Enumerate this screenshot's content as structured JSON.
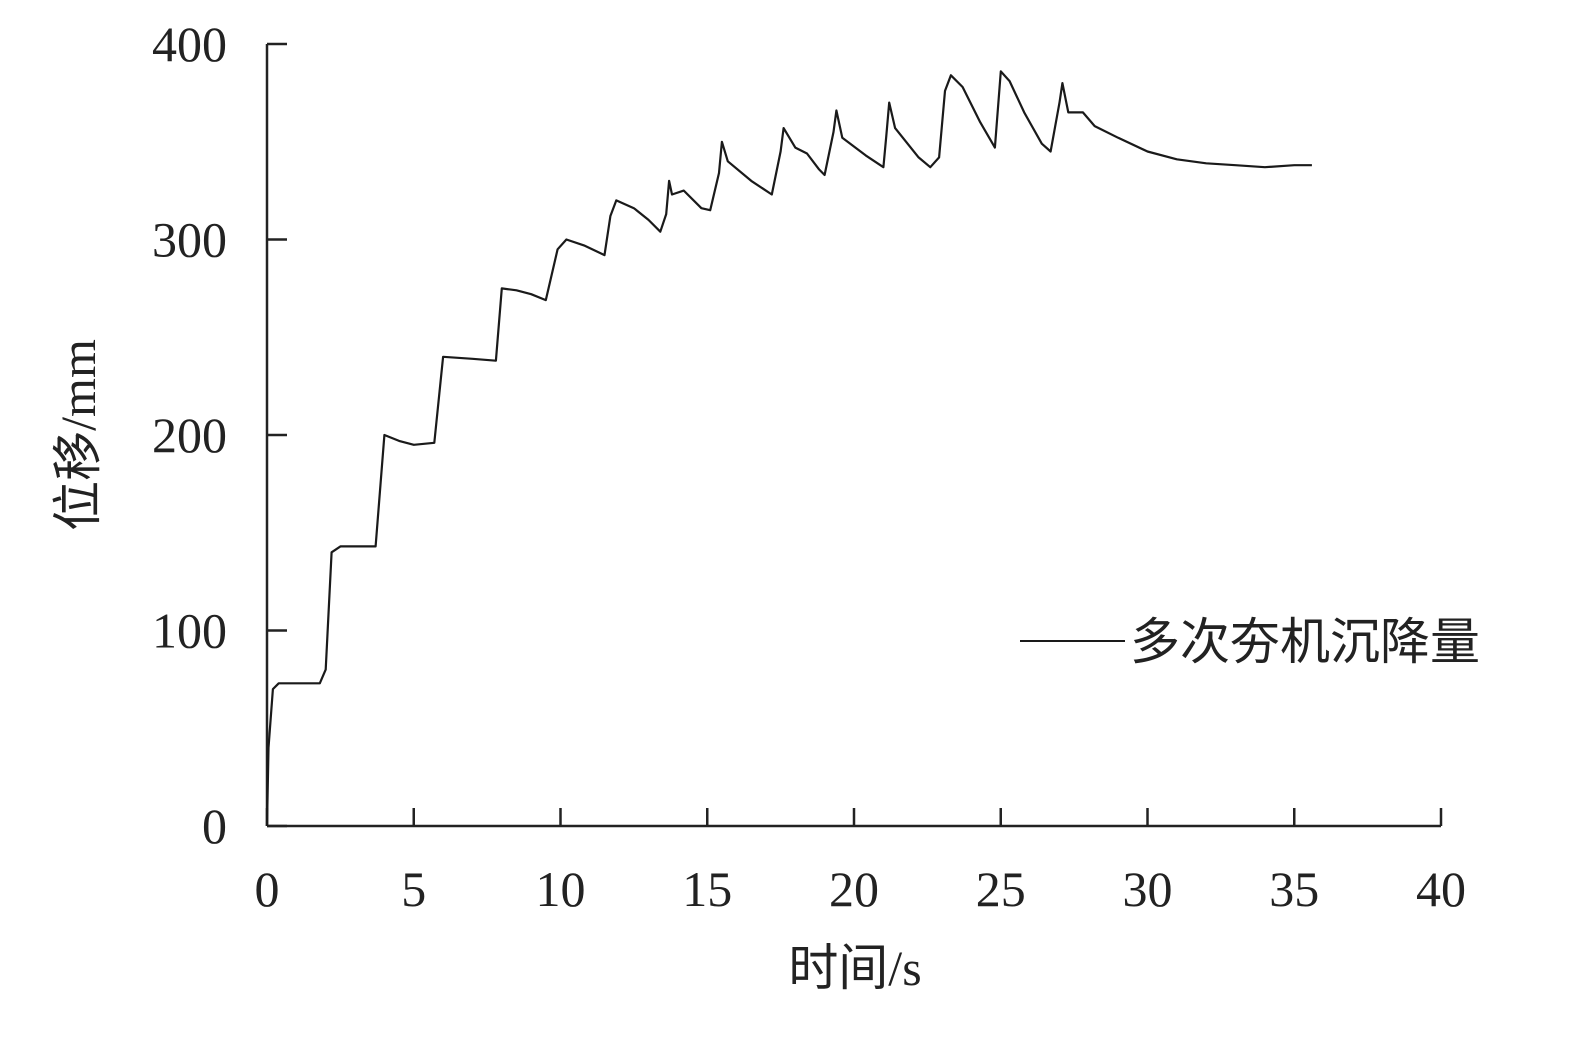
{
  "chart_data": {
    "type": "line",
    "xlabel": "时间/s",
    "ylabel": "位移/mm",
    "x": [
      0,
      0.05,
      0.2,
      0.4,
      1.8,
      2.0,
      2.2,
      2.5,
      3.7,
      4.0,
      4.5,
      5.0,
      5.7,
      6.0,
      7.0,
      7.8,
      8.0,
      8.5,
      9.0,
      9.5,
      9.9,
      10.2,
      10.8,
      11.5,
      11.7,
      11.9,
      12.5,
      13.0,
      13.4,
      13.6,
      13.7,
      13.8,
      14.2,
      14.8,
      15.1,
      15.4,
      15.5,
      15.7,
      16.5,
      17.2,
      17.5,
      17.6,
      18.0,
      18.4,
      18.8,
      19.0,
      19.3,
      19.4,
      19.6,
      20.4,
      21.0,
      21.1,
      21.2,
      21.4,
      22.2,
      22.6,
      22.9,
      23.1,
      23.3,
      23.7,
      24.3,
      24.8,
      25.0,
      25.3,
      25.8,
      26.4,
      26.7,
      27.0,
      27.1,
      27.3,
      27.8,
      28.2,
      29.0,
      30,
      31,
      32,
      33,
      34,
      35,
      35.6
    ],
    "series": [
      {
        "name": "多次夯机沉降量",
        "color": "#1a1a1a",
        "values": [
          0,
          40,
          70,
          73,
          73,
          80,
          140,
          143,
          143,
          200,
          197,
          195,
          196,
          240,
          239,
          238,
          275,
          274,
          272,
          269,
          295,
          300,
          297,
          292,
          312,
          320,
          316,
          310,
          304,
          313,
          330,
          323,
          325,
          316,
          315,
          334,
          350,
          340,
          330,
          323,
          345,
          357,
          347,
          344,
          336,
          333,
          355,
          366,
          352,
          343,
          337,
          353,
          370,
          357,
          342,
          337,
          342,
          376,
          384,
          378,
          360,
          347,
          386,
          381,
          365,
          349,
          345,
          370,
          380,
          365,
          365,
          358,
          352,
          345,
          341,
          339,
          338,
          337,
          338,
          338
        ]
      }
    ],
    "xlim": [
      0,
      40
    ],
    "xticks": [
      0,
      5,
      10,
      15,
      20,
      25,
      30,
      35,
      40
    ],
    "ylim": [
      0,
      400
    ],
    "yticks": [
      0,
      100,
      200,
      300,
      400
    ],
    "legend": "right"
  }
}
